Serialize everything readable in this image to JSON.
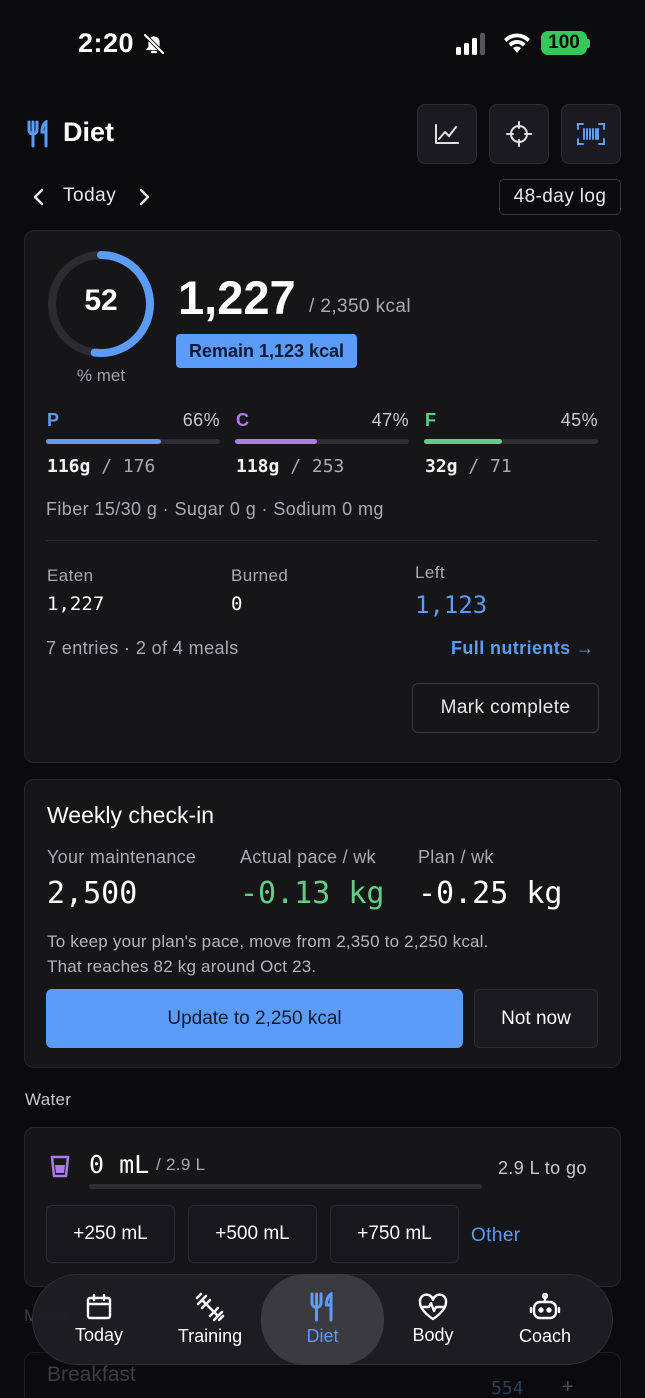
{
  "status_bar": {
    "time": "2:20",
    "battery": "100"
  },
  "header": {
    "title": "Diet"
  },
  "date_nav": {
    "label": "Today",
    "log_link": "48-day log"
  },
  "summary": {
    "ring_value": "52",
    "ring_label": "% met",
    "ring_fraction": 0.52,
    "calories": "1,227",
    "calorie_goal": "/ 2,350 kcal",
    "remain_badge": "Remain 1,123 kcal",
    "macros": [
      {
        "letter": "P",
        "pct": "66%",
        "fraction": 0.66,
        "eaten": "116g",
        "goal": " / 176",
        "color": "#5a9cf8"
      },
      {
        "letter": "C",
        "pct": "47%",
        "fraction": 0.47,
        "eaten": "118g",
        "goal": " / 253",
        "color": "#a97ce8"
      },
      {
        "letter": "F",
        "pct": "45%",
        "fraction": 0.45,
        "eaten": "32g",
        "goal": " / 71",
        "color": "#5fcf85"
      }
    ],
    "fiber_line": "Fiber 15/30 g · Sugar 0 g · Sodium 0 mg",
    "eaten_label": "Eaten",
    "eaten_value": "1,227",
    "burned_label": "Burned",
    "burned_value": "0",
    "left_label": "Left",
    "left_value": "1,123",
    "entries": "7 entries · 2 of 4 meals",
    "full_nutrients": "Full nutrients →",
    "mark_complete": "Mark complete"
  },
  "weekly": {
    "title": "Weekly check-in",
    "maintenance_label": "Your maintenance",
    "maintenance_value": "2,500",
    "pace_label": "Actual pace / wk",
    "pace_value": "-0.13 kg",
    "plan_label": "Plan / wk",
    "plan_value": "-0.25 kg",
    "note_line1": "To keep your plan's pace, move from 2,350 to 2,250 kcal.",
    "note_line2": "That reaches 82 kg around Oct 23.",
    "update_button": "Update to 2,250 kcal",
    "not_now_button": "Not now"
  },
  "water": {
    "heading": "Water",
    "value": "0 mL",
    "goal": "/ 2.9 L",
    "to_go": "2.9 L to go",
    "buttons": [
      "+250 mL",
      "+500 mL",
      "+750 mL"
    ],
    "other": "Other"
  },
  "underneath": {
    "meals_heading": "Meals",
    "breakfast": "Breakfast",
    "breakfast_kcal": "554",
    "add": "+"
  },
  "tabs": [
    {
      "label": "Today",
      "icon": "calendar-icon"
    },
    {
      "label": "Training",
      "icon": "dumbbell-icon"
    },
    {
      "label": "Diet",
      "icon": "fork-knife-icon"
    },
    {
      "label": "Body",
      "icon": "heart-pulse-icon"
    },
    {
      "label": "Coach",
      "icon": "robot-icon"
    }
  ],
  "colors": {
    "accent": "#5a9cf8",
    "protein": "#5a9cf8",
    "carbs": "#a97ce8",
    "fat": "#5fcf85",
    "battery": "#35c759"
  }
}
